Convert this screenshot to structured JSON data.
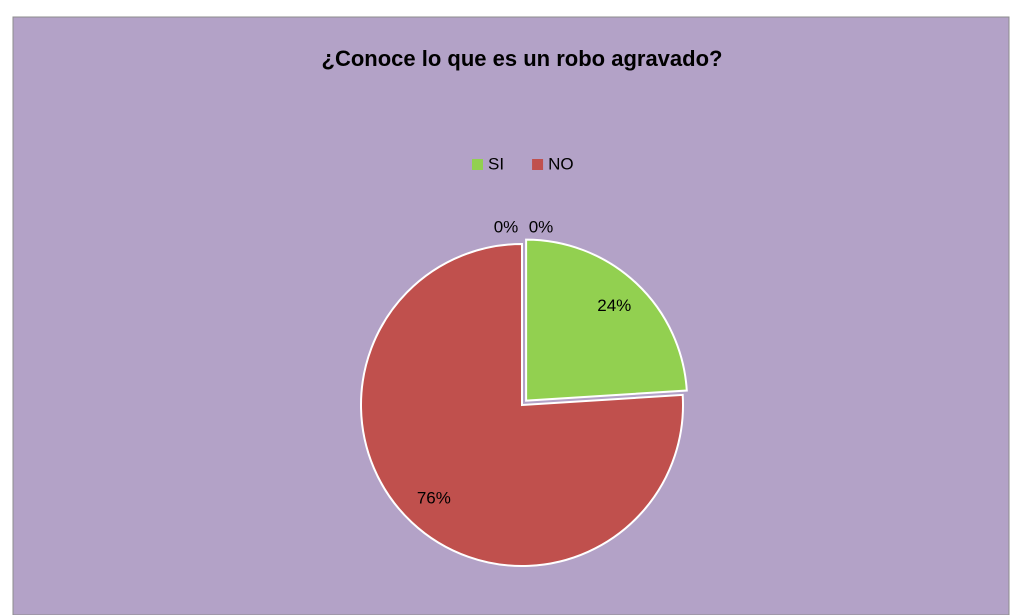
{
  "chart_data": {
    "type": "pie",
    "title": "¿Conoce lo que es un robo agravado?",
    "categories": [
      "SI",
      "NO",
      null,
      null
    ],
    "values": [
      24,
      76,
      0,
      0
    ],
    "value_labels": [
      "24%",
      "76%",
      "0%",
      "0%"
    ],
    "colors": [
      "#92d050",
      "#c0504d"
    ],
    "legend": "top"
  }
}
